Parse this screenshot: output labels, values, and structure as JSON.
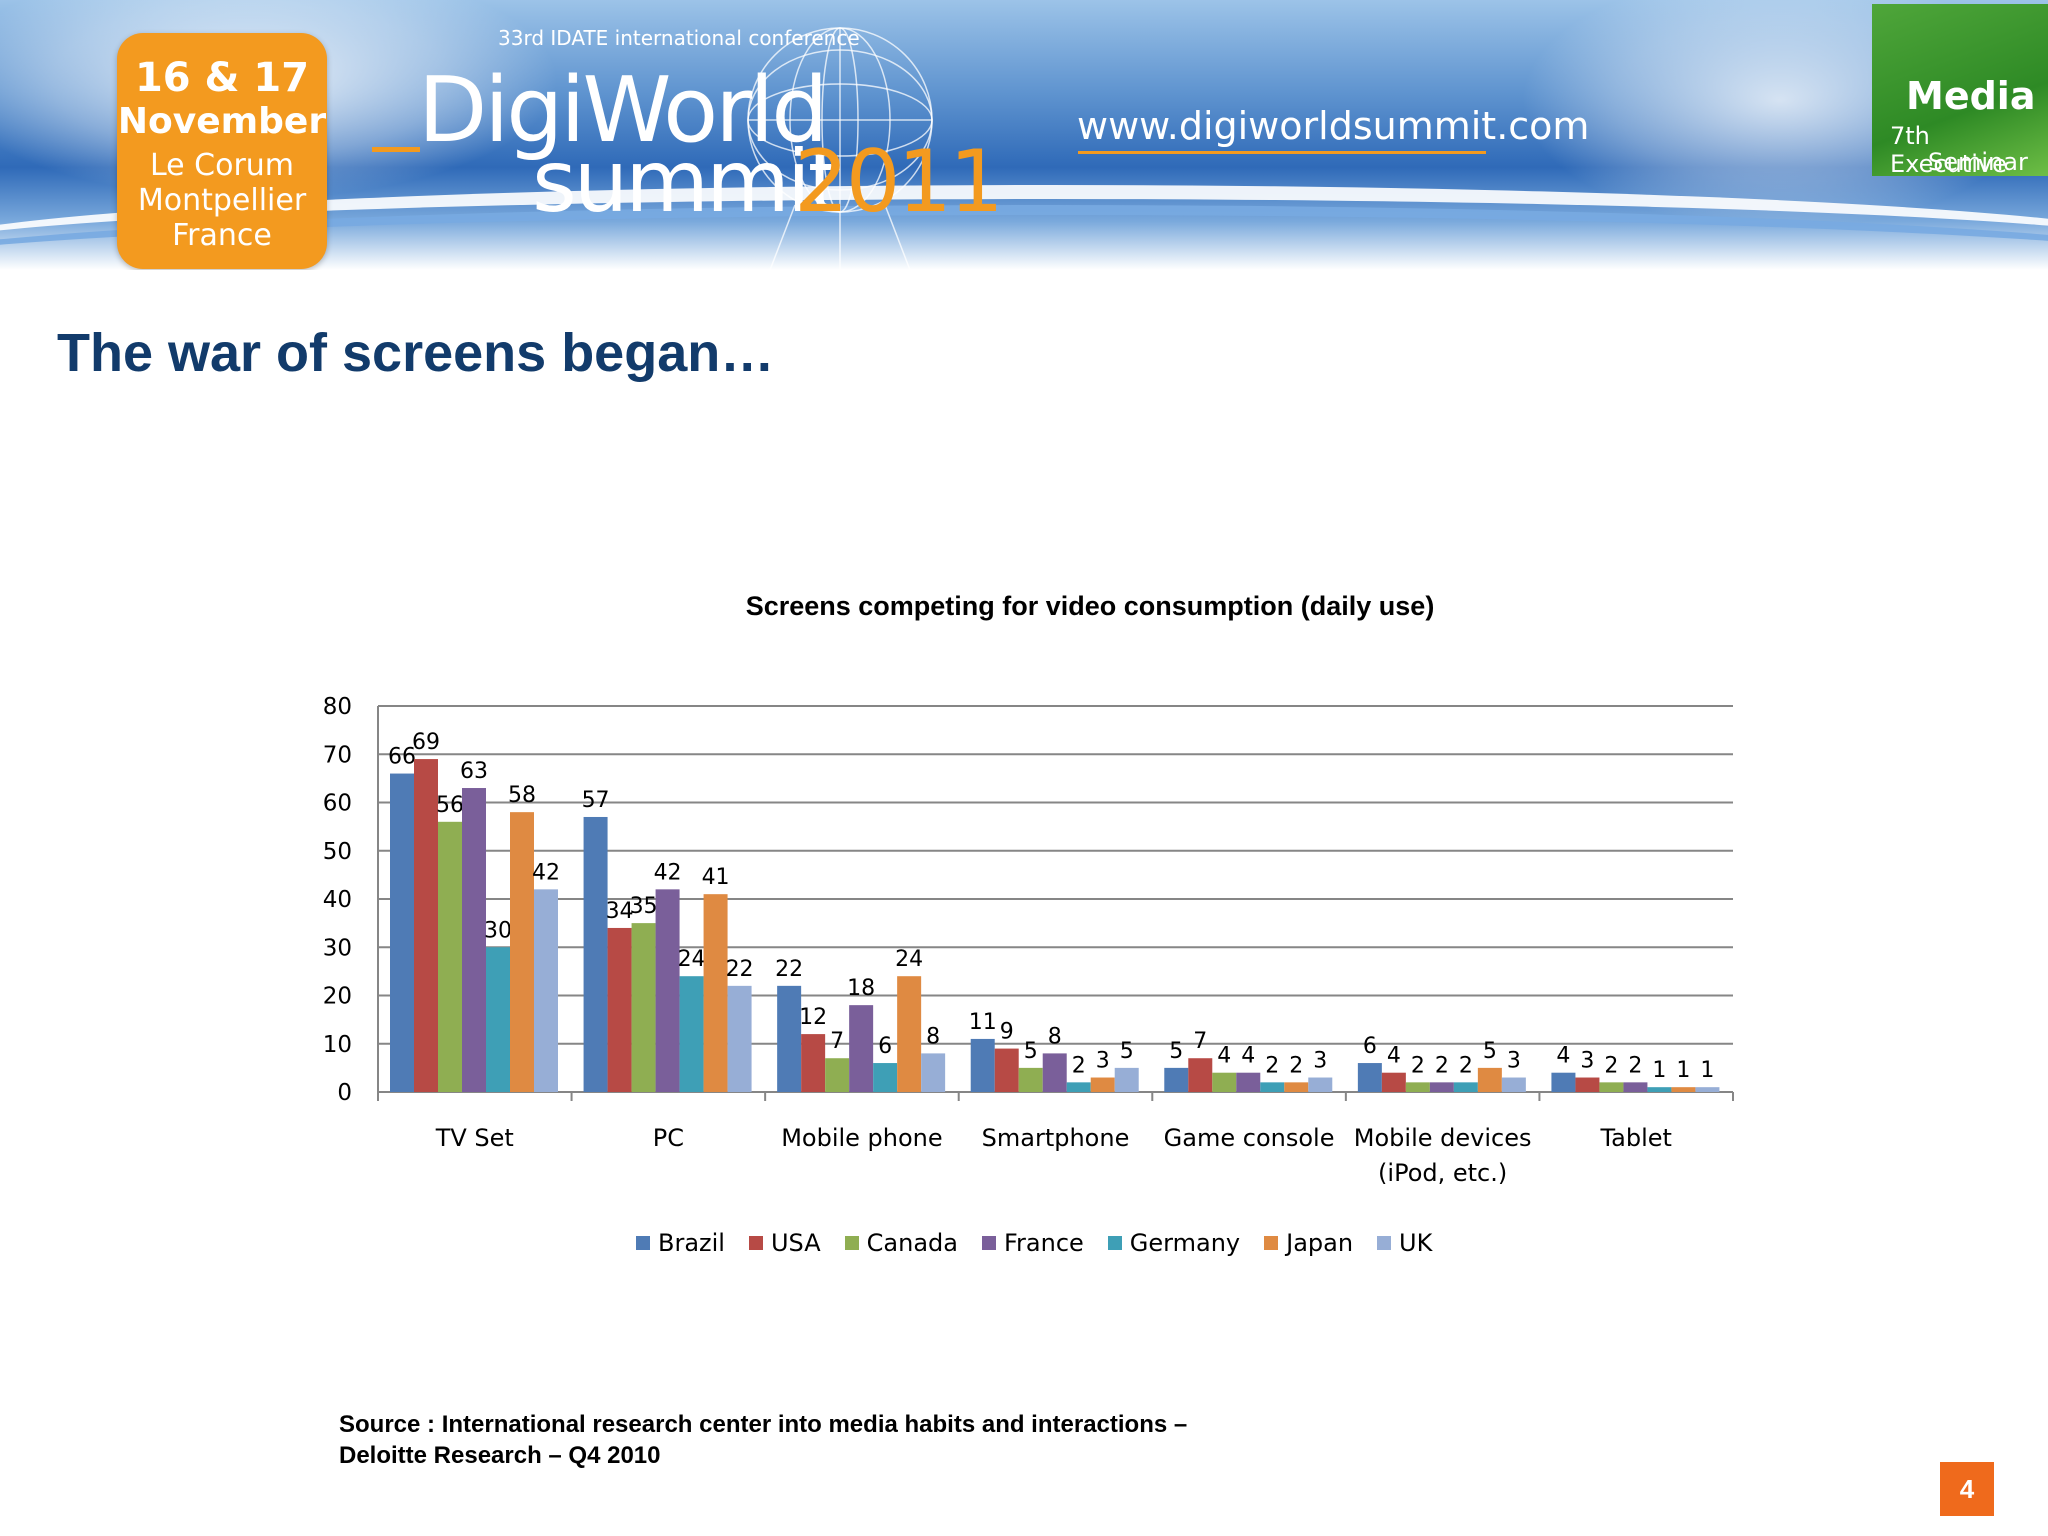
{
  "banner": {
    "date_line1": "16 & 17",
    "date_line2": "November",
    "venue_line1": "Le Corum",
    "venue_line2": "Montpellier",
    "venue_line3": "France",
    "conference_line": "33rd IDATE international conference",
    "logo_word1": "DigiWorld",
    "logo_word2": "summit",
    "logo_year": "2011",
    "url": "www.digiworldsummit.com",
    "media_title": "Media",
    "media_sub1": "7th Executive",
    "media_sub2": "Seminar",
    "colors": {
      "orange": "#f39a1f",
      "blue": "#2f6ab8",
      "green": "#3f9a2f"
    }
  },
  "page_title": "The war of screens began…",
  "source_line1": "Source : International research center into media habits and interactions –",
  "source_line2": "Deloitte Research – Q4 2010",
  "page_number": "4",
  "chart_data": {
    "type": "bar",
    "title": "Screens competing for video consumption (daily use)",
    "xlabel": "",
    "ylabel": "",
    "ylim": [
      0,
      80
    ],
    "yticks": [
      0,
      10,
      20,
      30,
      40,
      50,
      60,
      70,
      80
    ],
    "grid": true,
    "legend_position": "bottom",
    "categories": [
      "TV Set",
      "PC",
      "Mobile phone",
      "Smartphone",
      "Game console",
      "Mobile devices (iPod, etc.)",
      "Tablet"
    ],
    "category_lines": [
      [
        "TV Set"
      ],
      [
        "PC"
      ],
      [
        "Mobile phone"
      ],
      [
        "Smartphone"
      ],
      [
        "Game console"
      ],
      [
        "Mobile devices",
        "(iPod, etc.)"
      ],
      [
        "Tablet"
      ]
    ],
    "series": [
      {
        "name": "Brazil",
        "color": "#4f7bb5",
        "values": [
          66,
          57,
          22,
          11,
          5,
          6,
          4
        ]
      },
      {
        "name": "USA",
        "color": "#b74a45",
        "values": [
          69,
          34,
          12,
          9,
          7,
          4,
          3
        ]
      },
      {
        "name": "Canada",
        "color": "#8fae52",
        "values": [
          56,
          35,
          7,
          5,
          4,
          2,
          2
        ]
      },
      {
        "name": "France",
        "color": "#7a5f9a",
        "values": [
          63,
          42,
          18,
          8,
          4,
          2,
          2
        ]
      },
      {
        "name": "Germany",
        "color": "#3e9fb6",
        "values": [
          30,
          24,
          6,
          2,
          2,
          2,
          1
        ]
      },
      {
        "name": "Japan",
        "color": "#df8a42",
        "values": [
          58,
          41,
          24,
          3,
          2,
          5,
          1
        ]
      },
      {
        "name": "UK",
        "color": "#97aed6",
        "values": [
          42,
          22,
          8,
          5,
          3,
          3,
          1
        ]
      }
    ]
  }
}
